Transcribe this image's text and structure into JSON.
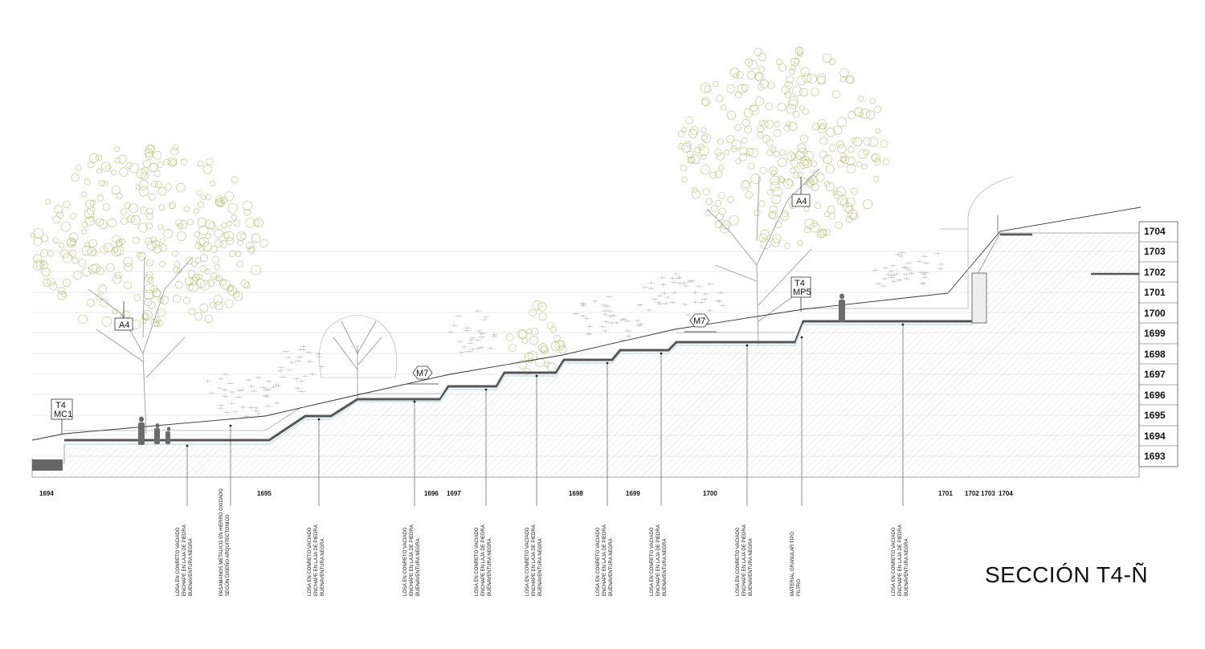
{
  "title": "SECCIÓN T4-Ñ",
  "elevation_labels": [
    "1704",
    "1703",
    "1702",
    "1701",
    "1700",
    "1699",
    "1698",
    "1697",
    "1696",
    "1695",
    "1694",
    "1693"
  ],
  "station_labels": [
    "1694",
    "1695",
    "1696",
    "1697",
    "1698",
    "1699",
    "1700",
    "1701",
    "1702",
    "1703",
    "1704"
  ],
  "tags": {
    "a4_left": "A4",
    "a4_right": "A4",
    "m7_left": "M7",
    "m7_right": "M7",
    "t4_mc1_line1": "T4",
    "t4_mc1_line2": "MC1",
    "t4_mp5_line1": "T4",
    "t4_mp5_line2": "MP5"
  },
  "callouts": [
    [
      "LOSA EN CONRETO VACIADO",
      "ENCHAPE EN LAJA DE PIEDRA",
      "BUENAVENTURA NEGRA"
    ],
    [
      "PASAMANOS METALICO EN HIERRO OXIDADO",
      "SEGÚN DISEÑO ARQUITECTONICO"
    ],
    [
      "LOSA EN CONRETO VACIADO",
      "ENCHAPE EN LAJA DE PIEDRA",
      "BUENAVENTURA NEGRA"
    ],
    [
      "LOSA EN CONRETO VACIADO",
      "ENCHAPE EN LAJA DE PIEDRA",
      "BUENAVENTURA NEGRA"
    ],
    [
      "LOSA EN CONRETO VACIADO",
      "ENCHAPE EN LAJA DE PIEDRA",
      "BUENAVENTURA NEGRA"
    ],
    [
      "LOSA EN CONRETO VACIADO",
      "ENCHAPE EN LAJA DE PIEDRA",
      "BUENAVENTURA NEGRA"
    ],
    [
      "LOSA EN CONRETO VACIADO",
      "ENCHAPE EN LAJA DE PIEDRA",
      "BUENAVENTURA NEGRA"
    ],
    [
      "LOSA EN CONRETO VACIADO",
      "ENCHAPE EN LAJA DE PIEDRA",
      "BUENAVENTURA NEGRA"
    ],
    [
      "LOSA EN CONRETO VACIADO",
      "ENCHAPE EN LAJA DE PIEDRA",
      "BUENAVENTURA NEGRA"
    ],
    [
      "MATERIAL GRANULAR TIPO",
      "FILTRO"
    ],
    [
      "LOSA EN CONRETO VACIADO",
      "ENCHAPE EN LAJA DE PIEDRA",
      "BUENAVENTURA NEGRA"
    ]
  ],
  "colors": {
    "line": "#222222",
    "hatch": "#bdbdbd",
    "slab": "#9aa3a8",
    "water": "#d7e7ee",
    "tree_round": "#b9c27a",
    "tree_branch": "#9a9a9a",
    "shrub": "#b5b5b5"
  }
}
